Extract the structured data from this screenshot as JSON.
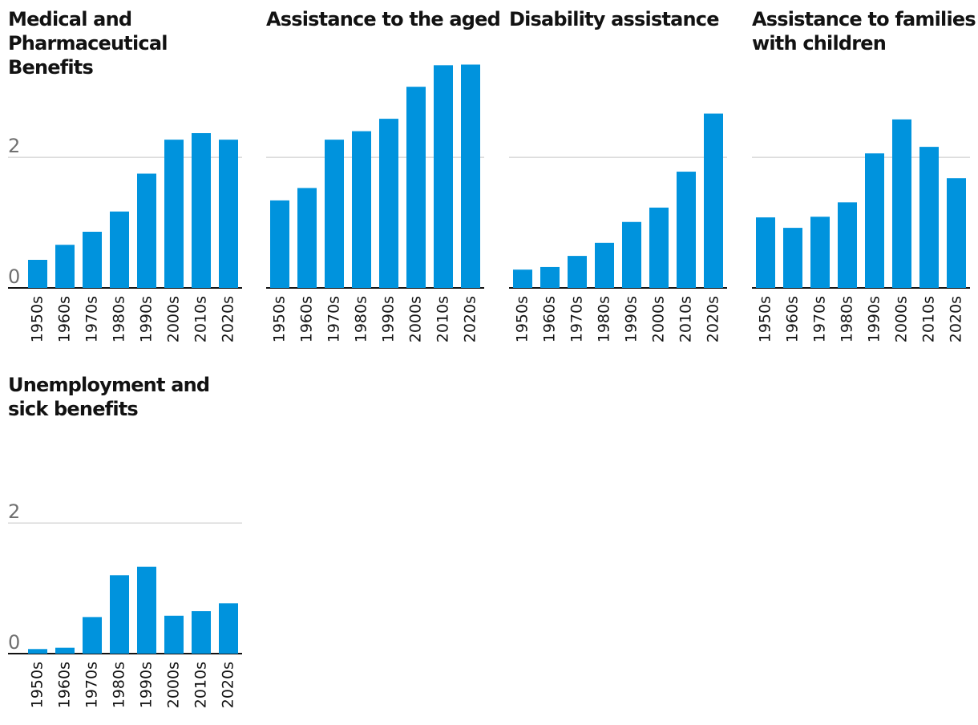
{
  "chart_data": [
    {
      "type": "bar",
      "title": "Medical and Pharmaceutical Benefits",
      "categories": [
        "1950s",
        "1960s",
        "1970s",
        "1980s",
        "1990s",
        "2000s",
        "2010s",
        "2020s"
      ],
      "values": [
        0.43,
        0.66,
        0.86,
        1.17,
        1.75,
        2.27,
        2.37,
        2.27
      ],
      "color": "#0093dd",
      "ylim": [
        0,
        3.5
      ],
      "yticks": [
        0,
        2
      ],
      "grid": true
    },
    {
      "type": "bar",
      "title": "Assistance to the aged",
      "categories": [
        "1950s",
        "1960s",
        "1970s",
        "1980s",
        "1990s",
        "2000s",
        "2010s",
        "2020s"
      ],
      "values": [
        1.34,
        1.53,
        2.27,
        2.4,
        2.59,
        3.08,
        3.41,
        3.42
      ],
      "color": "#0093dd",
      "ylim": [
        0,
        3.5
      ],
      "yticks": [
        0,
        2
      ],
      "grid": true
    },
    {
      "type": "bar",
      "title": "Disability assistance",
      "categories": [
        "1950s",
        "1960s",
        "1970s",
        "1980s",
        "1990s",
        "2000s",
        "2010s",
        "2020s"
      ],
      "values": [
        0.28,
        0.32,
        0.49,
        0.69,
        1.01,
        1.23,
        1.78,
        2.67
      ],
      "color": "#0093dd",
      "ylim": [
        0,
        3.5
      ],
      "yticks": [
        0,
        2
      ],
      "grid": true
    },
    {
      "type": "bar",
      "title": "Assistance to families with children",
      "categories": [
        "1950s",
        "1960s",
        "1970s",
        "1980s",
        "1990s",
        "2000s",
        "2010s",
        "2020s"
      ],
      "values": [
        1.08,
        0.92,
        1.09,
        1.31,
        2.06,
        2.58,
        2.16,
        1.68
      ],
      "color": "#0093dd",
      "ylim": [
        0,
        3.5
      ],
      "yticks": [
        0,
        2
      ],
      "grid": true
    },
    {
      "type": "bar",
      "title": "Unemployment and sick benefits",
      "categories": [
        "1950s",
        "1960s",
        "1970s",
        "1980s",
        "1990s",
        "2000s",
        "2010s",
        "2020s"
      ],
      "values": [
        0.07,
        0.09,
        0.56,
        1.2,
        1.33,
        0.58,
        0.65,
        0.77
      ],
      "color": "#0093dd",
      "ylim": [
        0,
        3.5
      ],
      "yticks": [
        0,
        2
      ],
      "grid": true
    }
  ]
}
